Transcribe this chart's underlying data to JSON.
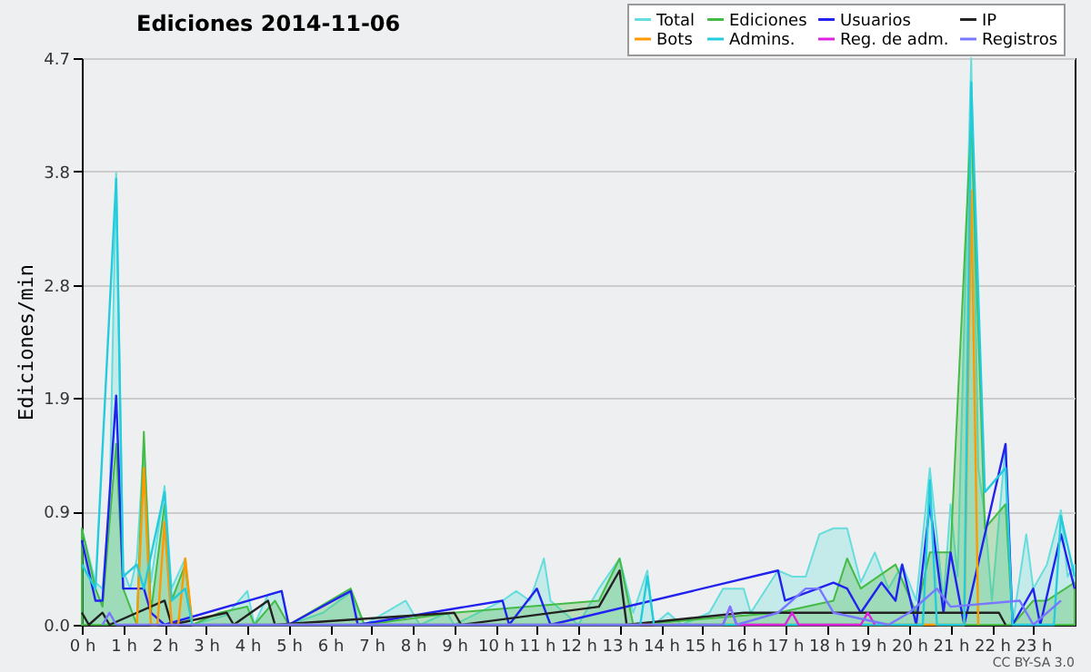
{
  "chart_data": {
    "type": "line",
    "title": "Ediciones  2014-11-06",
    "ylabel": "Ediciones/min",
    "xlim": [
      0,
      24
    ],
    "ylim": [
      0,
      4.7
    ],
    "xticks": [
      {
        "value": 0,
        "label": "0 h"
      },
      {
        "value": 1,
        "label": "1 h"
      },
      {
        "value": 2,
        "label": "2 h"
      },
      {
        "value": 3,
        "label": "3 h"
      },
      {
        "value": 4,
        "label": "4 h"
      },
      {
        "value": 5,
        "label": "5 h"
      },
      {
        "value": 6,
        "label": "6 h"
      },
      {
        "value": 7,
        "label": "7 h"
      },
      {
        "value": 8,
        "label": "8 h"
      },
      {
        "value": 9,
        "label": "9 h"
      },
      {
        "value": 10,
        "label": "10 h"
      },
      {
        "value": 11,
        "label": "11 h"
      },
      {
        "value": 12,
        "label": "12 h"
      },
      {
        "value": 13,
        "label": "13 h"
      },
      {
        "value": 14,
        "label": "14 h"
      },
      {
        "value": 15,
        "label": "15 h"
      },
      {
        "value": 16,
        "label": "16 h"
      },
      {
        "value": 17,
        "label": "17 h"
      },
      {
        "value": 18,
        "label": "18 h"
      },
      {
        "value": 19,
        "label": "19 h"
      },
      {
        "value": 20,
        "label": "20 h"
      },
      {
        "value": 21,
        "label": "21 h"
      },
      {
        "value": 22,
        "label": "22 h"
      },
      {
        "value": 23,
        "label": "23 h"
      }
    ],
    "yticks": [
      {
        "value": 0,
        "label": "0.0"
      },
      {
        "value": 0.94,
        "label": "0.9"
      },
      {
        "value": 1.88,
        "label": "1.9"
      },
      {
        "value": 2.82,
        "label": "2.8"
      },
      {
        "value": 3.76,
        "label": "3.8"
      },
      {
        "value": 4.7,
        "label": "4.7"
      }
    ],
    "grid": "y",
    "legend": "top right",
    "line_style": "solid",
    "marker": "none",
    "annotations": [
      "CC BY-SA 3.0"
    ],
    "series": [
      {
        "name": "Total",
        "type": "area",
        "color": "#66dddd",
        "x": [
          0,
          0.33,
          0.5,
          0.67,
          0.83,
          1.0,
          1.17,
          1.33,
          1.5,
          1.67,
          2.0,
          2.17,
          2.5,
          2.67,
          3.5,
          4.0,
          4.17,
          4.5,
          4.83,
          5.0,
          5.83,
          6.5,
          6.83,
          7.83,
          8.17,
          8.83,
          9.0,
          10.17,
          10.5,
          10.83,
          11.17,
          11.33,
          12.0,
          12.5,
          13.0,
          13.33,
          13.67,
          13.83,
          14.17,
          14.5,
          15.17,
          15.5,
          16.0,
          16.17,
          16.83,
          17.17,
          17.5,
          17.83,
          18.17,
          18.5,
          18.83,
          19.17,
          19.5,
          19.83,
          20.17,
          20.5,
          20.83,
          21.0,
          21.17,
          21.5,
          21.67,
          21.83,
          22.0,
          22.33,
          22.5,
          22.83,
          23.0,
          23.33,
          23.67,
          23.83,
          24
        ],
        "values": [
          0.8,
          0.35,
          0.3,
          1.0,
          3.75,
          0.45,
          0.3,
          0.55,
          1.5,
          0.35,
          1.15,
          0.3,
          0.55,
          0,
          0.08,
          0.28,
          0,
          0.25,
          0.28,
          0,
          0.1,
          0.27,
          0,
          0.2,
          0,
          0.1,
          0,
          0.2,
          0.28,
          0.2,
          0.55,
          0.2,
          0,
          0.3,
          0.55,
          0.1,
          0.45,
          0,
          0.1,
          0,
          0.1,
          0.3,
          0.3,
          0.1,
          0.45,
          0.4,
          0.4,
          0.75,
          0.8,
          0.8,
          0.35,
          0.6,
          0.3,
          0.5,
          0.2,
          1.3,
          0.2,
          1.0,
          0.4,
          4.7,
          1.3,
          0.9,
          0.2,
          1.5,
          0,
          0.75,
          0.3,
          0.5,
          0.95,
          0.4,
          0.5
        ]
      },
      {
        "name": "Ediciones",
        "type": "area",
        "color": "#44bb44",
        "x": [
          0,
          0.33,
          0.5,
          0.83,
          1.0,
          1.33,
          1.5,
          1.67,
          2.0,
          2.17,
          2.5,
          2.67,
          3.33,
          4.0,
          4.17,
          4.67,
          5.0,
          6.5,
          6.83,
          9.0,
          12.5,
          13.0,
          13.33,
          16.83,
          18.17,
          18.5,
          18.83,
          19.67,
          20.17,
          20.5,
          21.0,
          21.5,
          21.83,
          22.33,
          22.5,
          23.0,
          23.33,
          24
        ],
        "values": [
          0.8,
          0.3,
          0.15,
          1.5,
          0.3,
          0,
          1.6,
          0.1,
          1.0,
          0.2,
          0.5,
          0,
          0.1,
          0.15,
          0,
          0.2,
          0,
          0.3,
          0,
          0.1,
          0.2,
          0.55,
          0,
          0.1,
          0.2,
          0.55,
          0.3,
          0.5,
          0.1,
          0.6,
          0.6,
          4.2,
          0.8,
          1.0,
          0,
          0.2,
          0.2,
          0.35
        ]
      },
      {
        "name": "Usuarios",
        "color": "#2222ee",
        "x": [
          0,
          0.33,
          0.5,
          0.83,
          1.0,
          1.17,
          1.5,
          1.67,
          2.0,
          4.83,
          5.0,
          6.5,
          6.67,
          10.17,
          10.33,
          11.0,
          11.33,
          16.83,
          17.0,
          18.17,
          18.5,
          18.83,
          19.33,
          19.67,
          19.83,
          20.17,
          20.5,
          20.83,
          21.0,
          21.33,
          22.33,
          22.5,
          23.0,
          23.17,
          23.67,
          24
        ],
        "values": [
          0.7,
          0.2,
          0.2,
          1.9,
          0.3,
          0.3,
          0.3,
          0.1,
          0,
          0.28,
          0,
          0.28,
          0,
          0.2,
          0,
          0.3,
          0,
          0.45,
          0.2,
          0.35,
          0.3,
          0.1,
          0.35,
          0.2,
          0.5,
          0,
          1.0,
          0.1,
          0.6,
          0,
          1.5,
          0,
          0.3,
          0,
          0.75,
          0.3
        ]
      },
      {
        "name": "IP",
        "color": "#222222",
        "x": [
          0,
          0.17,
          0.5,
          0.67,
          2.0,
          2.17,
          3.5,
          3.67,
          4.5,
          4.67,
          9.0,
          9.17,
          12.5,
          13.0,
          13.17,
          16.0,
          17.0,
          20.0,
          21.17,
          21.83,
          22.17,
          22.33
        ],
        "values": [
          0.1,
          0,
          0.1,
          0,
          0.2,
          0,
          0.1,
          0,
          0.2,
          0,
          0.1,
          0,
          0.15,
          0.45,
          0,
          0.1,
          0.1,
          0.1,
          0.1,
          0.1,
          0.1,
          0
        ]
      },
      {
        "name": "Bots",
        "color": "#ff9900",
        "x": [
          1.33,
          1.5,
          1.67,
          1.83,
          2.0,
          2.17,
          2.33,
          2.5,
          2.67,
          21.33,
          21.5,
          21.67
        ],
        "values": [
          0,
          1.3,
          0,
          0,
          0.85,
          0,
          0,
          0.55,
          0,
          0,
          3.6,
          0
        ]
      },
      {
        "name": "Admins.",
        "color": "#22ccdd",
        "x": [
          0,
          0.33,
          0.83,
          1.0,
          1.33,
          1.5,
          2.0,
          2.17,
          2.5,
          2.67,
          13.5,
          13.67,
          13.83,
          20.33,
          20.5,
          20.67,
          21.33,
          21.5,
          21.83,
          22.33,
          22.5,
          23.5,
          23.67,
          24
        ],
        "values": [
          0.5,
          0.3,
          3.7,
          0.4,
          0.5,
          0.3,
          1.1,
          0.2,
          0.3,
          0,
          0,
          0.4,
          0,
          0,
          1.2,
          0,
          0,
          4.5,
          1.1,
          1.3,
          0,
          0,
          0.9,
          0.4
        ]
      },
      {
        "name": "Reg. de adm.",
        "color": "#dd22dd",
        "x": [
          15.5,
          15.67,
          15.83,
          17.0,
          17.17,
          17.33,
          18.83,
          19.0,
          19.17
        ],
        "values": [
          0,
          0.15,
          0,
          0,
          0.1,
          0,
          0,
          0.1,
          0
        ]
      },
      {
        "name": "Registros",
        "color": "#7777ff",
        "x": [
          0.5,
          0.67,
          0.83,
          15.5,
          15.67,
          15.83,
          16.83,
          17.5,
          17.83,
          18.17,
          19.5,
          20.0,
          20.67,
          21.0,
          22.67,
          23.0,
          23.67
        ],
        "values": [
          0,
          0.1,
          0,
          0,
          0.15,
          0,
          0.1,
          0.3,
          0.3,
          0.1,
          0,
          0.1,
          0.3,
          0.15,
          0.2,
          0,
          0.2
        ]
      }
    ]
  }
}
